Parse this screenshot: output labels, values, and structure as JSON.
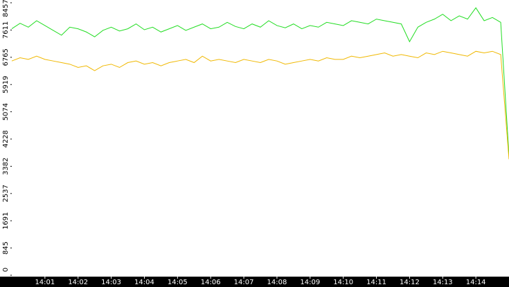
{
  "chart_data": {
    "type": "line",
    "x": [
      0,
      0.25,
      0.5,
      0.75,
      1,
      1.25,
      1.5,
      1.75,
      2,
      2.25,
      2.5,
      2.75,
      3,
      3.25,
      3.5,
      3.75,
      4,
      4.25,
      4.5,
      4.75,
      5,
      5.25,
      5.5,
      5.75,
      6,
      6.25,
      6.5,
      6.75,
      7,
      7.25,
      7.5,
      7.75,
      8,
      8.25,
      8.5,
      8.75,
      9,
      9.25,
      9.5,
      9.75,
      10,
      10.25,
      10.5,
      10.75,
      11,
      11.25,
      11.5,
      11.75,
      12,
      12.25,
      12.5,
      12.75,
      13,
      13.25,
      13.5,
      13.75,
      14,
      14.25,
      14.5,
      14.75,
      15
    ],
    "series": [
      {
        "color": "#22dd22",
        "values": [
          7650,
          7820,
          7700,
          7900,
          7750,
          7600,
          7450,
          7700,
          7650,
          7550,
          7400,
          7600,
          7700,
          7580,
          7650,
          7800,
          7620,
          7700,
          7550,
          7650,
          7750,
          7600,
          7700,
          7800,
          7650,
          7700,
          7850,
          7720,
          7650,
          7800,
          7700,
          7900,
          7750,
          7680,
          7800,
          7650,
          7750,
          7700,
          7850,
          7800,
          7750,
          7900,
          7850,
          7800,
          7950,
          7900,
          7850,
          7800,
          7250,
          7700,
          7850,
          7950,
          8100,
          7900,
          8050,
          7950,
          8300,
          7900,
          8000,
          7850,
          3700
        ]
      },
      {
        "color": "#f0b800",
        "values": [
          6650,
          6750,
          6700,
          6800,
          6700,
          6650,
          6600,
          6550,
          6450,
          6500,
          6350,
          6500,
          6550,
          6450,
          6600,
          6650,
          6550,
          6600,
          6500,
          6600,
          6650,
          6700,
          6600,
          6800,
          6650,
          6700,
          6650,
          6600,
          6700,
          6650,
          6600,
          6700,
          6650,
          6550,
          6600,
          6650,
          6700,
          6650,
          6750,
          6700,
          6700,
          6800,
          6750,
          6800,
          6850,
          6900,
          6800,
          6850,
          6800,
          6750,
          6900,
          6850,
          6950,
          6900,
          6850,
          6800,
          6950,
          6900,
          6950,
          6850,
          3600
        ]
      }
    ],
    "xlim": [
      0,
      15
    ],
    "xticks": [
      {
        "value": 1,
        "label": "14:01"
      },
      {
        "value": 2,
        "label": "14:02"
      },
      {
        "value": 3,
        "label": "14:03"
      },
      {
        "value": 4,
        "label": "14:04"
      },
      {
        "value": 5,
        "label": "14:05"
      },
      {
        "value": 6,
        "label": "14:06"
      },
      {
        "value": 7,
        "label": "14:07"
      },
      {
        "value": 8,
        "label": "14:08"
      },
      {
        "value": 9,
        "label": "14:09"
      },
      {
        "value": 10,
        "label": "14:10"
      },
      {
        "value": 11,
        "label": "14:11"
      },
      {
        "value": 12,
        "label": "14:12"
      },
      {
        "value": 13,
        "label": "14:13"
      },
      {
        "value": 14,
        "label": "14:14"
      }
    ],
    "ylim": [
      0,
      8457
    ],
    "yticks": [
      0,
      845,
      1691,
      2537,
      3382,
      4228,
      5074,
      5919,
      6765,
      7611,
      8457
    ],
    "grid": false
  }
}
